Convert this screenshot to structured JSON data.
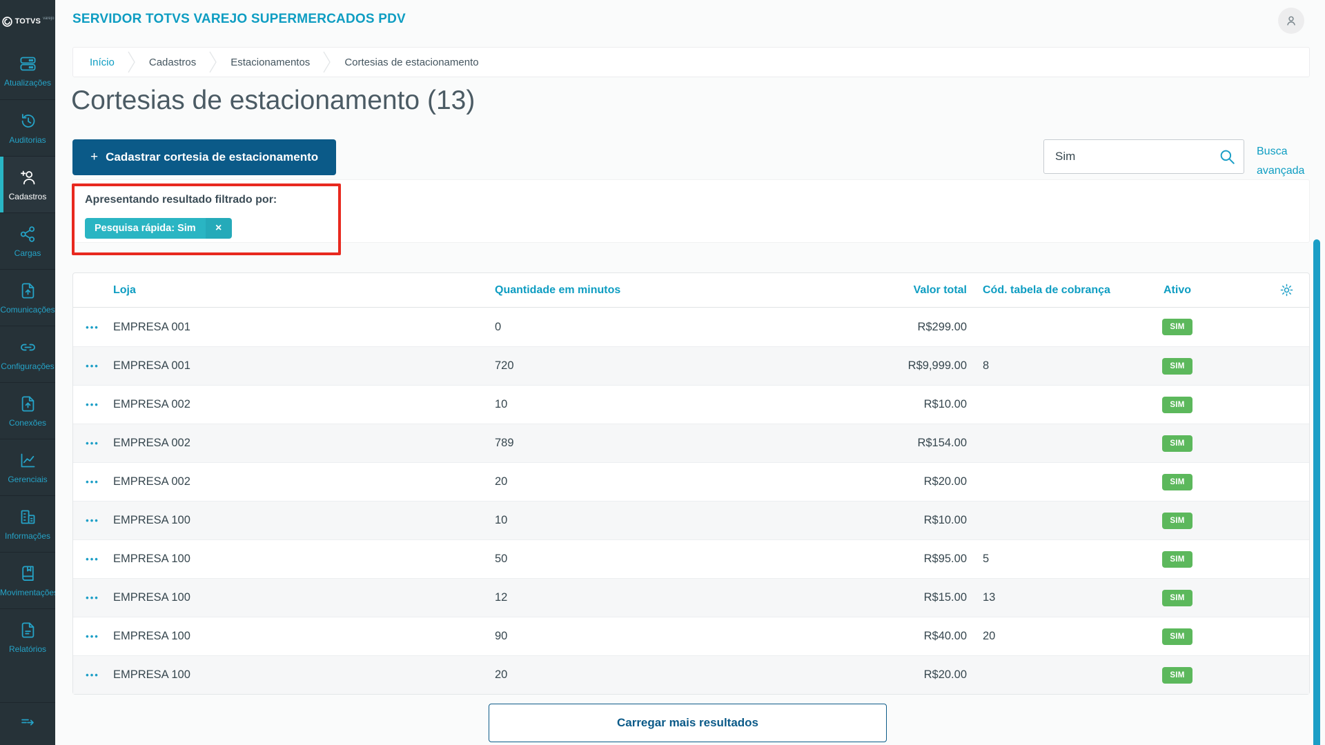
{
  "colors": {
    "accent_teal": "#29b6c5",
    "link_teal": "#0e9dc2",
    "primary_blue": "#0b5a88",
    "badge_green": "#5cb85c",
    "annotation_red": "#e8291f",
    "sidebar_bg": "#263238"
  },
  "sidebar": {
    "logo": {
      "brand": "TOTVS",
      "sub": "varejo"
    },
    "items": [
      {
        "label": "Atualizações",
        "icon": "server-icon",
        "active": false
      },
      {
        "label": "Auditorias",
        "icon": "history-icon",
        "active": false
      },
      {
        "label": "Cadastros",
        "icon": "user-plus-icon",
        "active": true
      },
      {
        "label": "Cargas",
        "icon": "share-icon",
        "active": false
      },
      {
        "label": "Comunicações",
        "icon": "file-upload-icon",
        "active": false
      },
      {
        "label": "Configurações",
        "icon": "link-icon",
        "active": false
      },
      {
        "label": "Conexões",
        "icon": "file-upload-icon",
        "active": false
      },
      {
        "label": "Gerenciais",
        "icon": "chart-icon",
        "active": false
      },
      {
        "label": "Informações",
        "icon": "building-icon",
        "active": false
      },
      {
        "label": "Movimentações",
        "icon": "book-icon",
        "active": false
      },
      {
        "label": "Relatórios",
        "icon": "report-icon",
        "active": false
      }
    ]
  },
  "header": {
    "title": "SERVIDOR TOTVS VAREJO SUPERMERCADOS PDV"
  },
  "breadcrumb": [
    "Início",
    "Cadastros",
    "Estacionamentos",
    "Cortesias de estacionamento"
  ],
  "page": {
    "title": "Cortesias de estacionamento (13)"
  },
  "toolbar": {
    "add_plus": "+",
    "add_button": "Cadastrar cortesia de estacionamento",
    "search_value": "Sim",
    "advanced_search": "Busca avançada"
  },
  "filter": {
    "label": "Apresentando resultado filtrado por:",
    "chip": "Pesquisa rápida: Sim",
    "chip_close": "×"
  },
  "table": {
    "columns": [
      "Loja",
      "Quantidade em minutos",
      "Valor total",
      "Cód. tabela de cobrança",
      "Ativo"
    ],
    "rows": [
      {
        "loja": "EMPRESA 001",
        "quantidade": "0",
        "valor": "R$299.00",
        "cod": "",
        "ativo": "SIM"
      },
      {
        "loja": "EMPRESA 001",
        "quantidade": "720",
        "valor": "R$9,999.00",
        "cod": "8",
        "ativo": "SIM"
      },
      {
        "loja": "EMPRESA 002",
        "quantidade": "10",
        "valor": "R$10.00",
        "cod": "",
        "ativo": "SIM"
      },
      {
        "loja": "EMPRESA 002",
        "quantidade": "789",
        "valor": "R$154.00",
        "cod": "",
        "ativo": "SIM"
      },
      {
        "loja": "EMPRESA 002",
        "quantidade": "20",
        "valor": "R$20.00",
        "cod": "",
        "ativo": "SIM"
      },
      {
        "loja": "EMPRESA 100",
        "quantidade": "10",
        "valor": "R$10.00",
        "cod": "",
        "ativo": "SIM"
      },
      {
        "loja": "EMPRESA 100",
        "quantidade": "50",
        "valor": "R$95.00",
        "cod": "5",
        "ativo": "SIM"
      },
      {
        "loja": "EMPRESA 100",
        "quantidade": "12",
        "valor": "R$15.00",
        "cod": "13",
        "ativo": "SIM"
      },
      {
        "loja": "EMPRESA 100",
        "quantidade": "90",
        "valor": "R$40.00",
        "cod": "20",
        "ativo": "SIM"
      },
      {
        "loja": "EMPRESA 100",
        "quantidade": "20",
        "valor": "R$20.00",
        "cod": "",
        "ativo": "SIM"
      }
    ]
  },
  "footer": {
    "load_more": "Carregar mais resultados"
  }
}
